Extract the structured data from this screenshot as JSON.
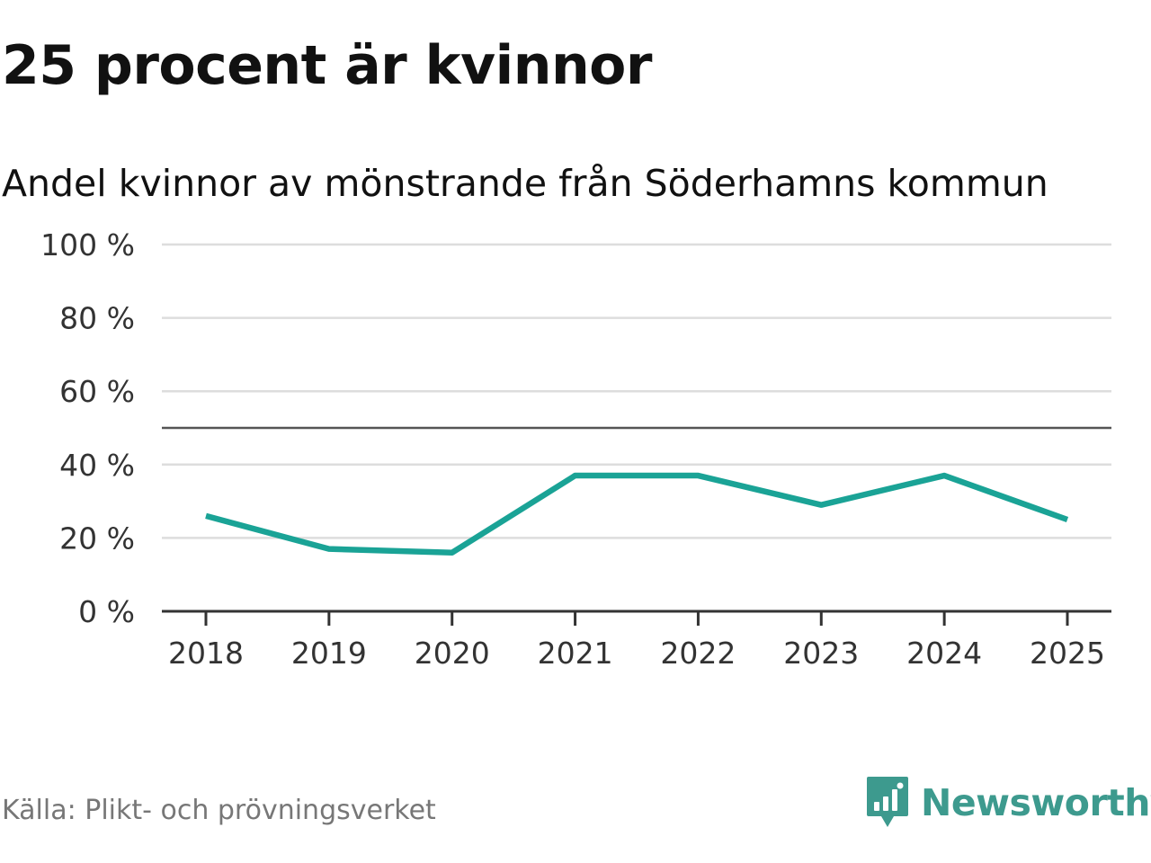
{
  "headline": "25 procent är kvinnor",
  "source": "Källa: Plikt- och prövningsverket",
  "brand": {
    "name": "Newsworthy",
    "icon": "newsworthy-logo-icon",
    "color": "#3d9a8e"
  },
  "chart_data": {
    "type": "line",
    "title": "Andel kvinnor av mönstrande från Söderhamns kommun",
    "xlabel": "",
    "ylabel": "",
    "categories": [
      "2018",
      "2019",
      "2020",
      "2021",
      "2022",
      "2023",
      "2024",
      "2025"
    ],
    "series": [
      {
        "name": "Andel kvinnor",
        "color": "#1aa396",
        "values": [
          26,
          17,
          16,
          37,
          37,
          29,
          37,
          25
        ]
      }
    ],
    "ylim": [
      0,
      100
    ],
    "yticks": [
      0,
      20,
      40,
      60,
      80,
      100
    ],
    "ytick_labels": [
      "0 %",
      "20 %",
      "40 %",
      "60 %",
      "80 %",
      "100 %"
    ],
    "reference_line": 50,
    "grid": true
  }
}
